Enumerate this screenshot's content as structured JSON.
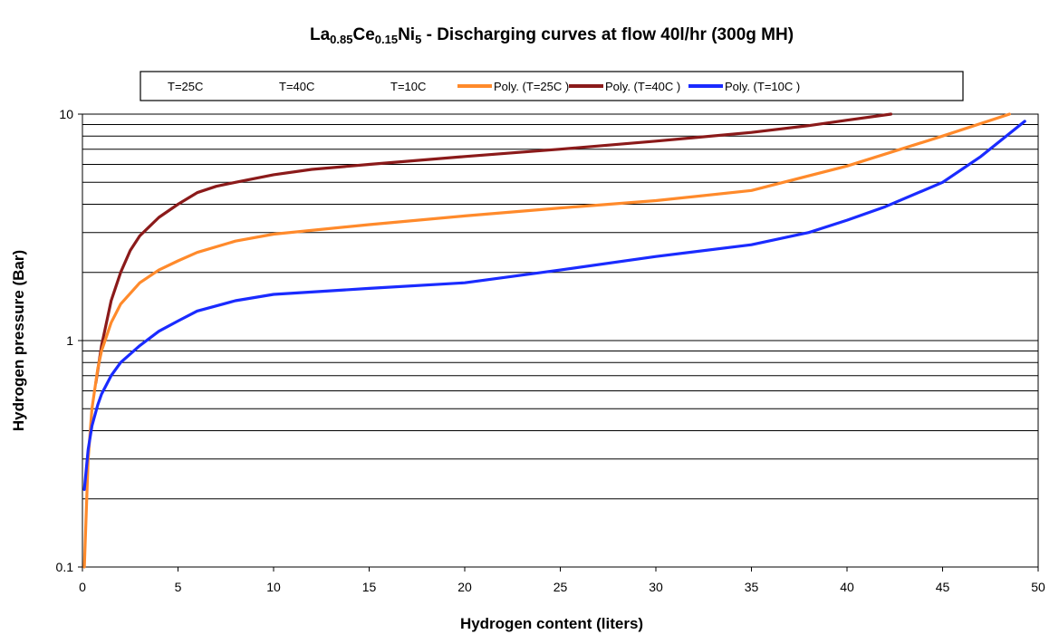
{
  "chart_data": {
    "type": "line",
    "title": {
      "parts": [
        {
          "text": "La",
          "sub": false
        },
        {
          "text": "0.85",
          "sub": true
        },
        {
          "text": "Ce",
          "sub": false
        },
        {
          "text": "0.15",
          "sub": true
        },
        {
          "text": "Ni",
          "sub": false
        },
        {
          "text": "5",
          "sub": true
        },
        {
          "text": " - Discharging curves at flow 40l/hr (300g MH)",
          "sub": false
        }
      ]
    },
    "xlabel": "Hydrogen content (liters)",
    "ylabel": "Hydrogen pressure (Bar)",
    "xlim": [
      0,
      50
    ],
    "ylim": [
      0.1,
      10
    ],
    "y_scale": "log",
    "grid": "horizontal",
    "legend_position": "top",
    "x_ticks": [
      0,
      5,
      10,
      15,
      20,
      25,
      30,
      35,
      40,
      45,
      50
    ],
    "y_ticks": [
      0.1,
      1,
      10
    ],
    "y_grid": [
      0.2,
      0.3,
      0.4,
      0.5,
      0.6,
      0.7,
      0.8,
      0.9,
      1,
      2,
      3,
      4,
      5,
      6,
      7,
      8,
      9,
      10
    ],
    "legend": [
      {
        "label": "T=25C",
        "color": null
      },
      {
        "label": "T=40C",
        "color": null
      },
      {
        "label": "T=10C",
        "color": null
      },
      {
        "label": "Poly. (T=25C )",
        "color": "#ff8a2b"
      },
      {
        "label": "Poly. (T=40C )",
        "color": "#8b1a1a"
      },
      {
        "label": "Poly. (T=10C )",
        "color": "#1a2bff"
      }
    ],
    "series": [
      {
        "name": "Poly. (T=40C )",
        "color": "#8b1a1a",
        "x": [
          0.7,
          1.0,
          1.5,
          2,
          2.5,
          3,
          4,
          5,
          6,
          7,
          8,
          10,
          12,
          15,
          20,
          25,
          30,
          35,
          38,
          40,
          42.3
        ],
        "y": [
          0.65,
          0.95,
          1.5,
          2.0,
          2.5,
          2.9,
          3.5,
          4.0,
          4.5,
          4.8,
          5.0,
          5.4,
          5.7,
          6.0,
          6.5,
          7.0,
          7.6,
          8.3,
          8.9,
          9.4,
          10.0
        ]
      },
      {
        "name": "Poly. (T=25C )",
        "color": "#ff8a2b",
        "x": [
          0.1,
          0.3,
          0.5,
          0.8,
          1,
          1.5,
          2,
          3,
          4,
          5,
          6,
          8,
          10,
          15,
          20,
          25,
          30,
          35,
          40,
          45,
          48.5
        ],
        "y": [
          0.1,
          0.3,
          0.5,
          0.75,
          0.9,
          1.2,
          1.45,
          1.8,
          2.05,
          2.25,
          2.45,
          2.75,
          2.95,
          3.25,
          3.55,
          3.85,
          4.15,
          4.6,
          5.9,
          8.0,
          10.0
        ]
      },
      {
        "name": "Poly. (T=10C )",
        "color": "#1a2bff",
        "x": [
          0.1,
          0.3,
          0.5,
          0.8,
          1,
          1.5,
          2,
          3,
          4,
          5,
          6,
          8,
          10,
          15,
          20,
          25,
          30,
          35,
          38,
          40,
          42,
          45,
          47,
          49.3
        ],
        "y": [
          0.22,
          0.33,
          0.42,
          0.52,
          0.58,
          0.7,
          0.8,
          0.95,
          1.1,
          1.22,
          1.35,
          1.5,
          1.6,
          1.7,
          1.8,
          2.05,
          2.35,
          2.65,
          3.0,
          3.4,
          3.9,
          5.0,
          6.5,
          9.3
        ]
      }
    ]
  }
}
